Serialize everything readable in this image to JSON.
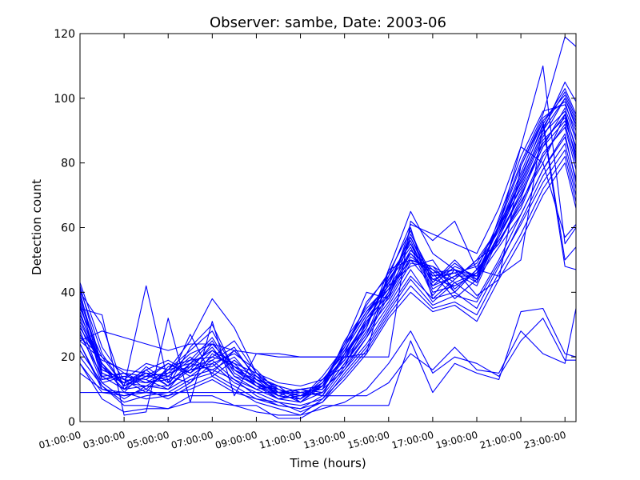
{
  "chart_data": {
    "type": "line",
    "title": "Observer: sambe, Date: 2003-06",
    "xlabel": "Time (hours)",
    "ylabel": "Detection count",
    "x_tick_labels": [
      "01:00:00",
      "03:00:00",
      "05:00:00",
      "07:00:00",
      "09:00:00",
      "11:00:00",
      "13:00:00",
      "15:00:00",
      "17:00:00",
      "19:00:00",
      "21:00:00",
      "23:00:00"
    ],
    "y_ticks": [
      0,
      20,
      40,
      60,
      80,
      100,
      120
    ],
    "xlim": [
      1,
      23.5
    ],
    "ylim": [
      0,
      120
    ],
    "grid": false,
    "line_color": "#0000ff",
    "x": [
      1,
      2,
      3,
      4,
      5,
      6,
      7,
      8,
      9,
      10,
      11,
      12,
      13,
      14,
      15,
      16,
      17,
      18,
      19,
      20,
      21,
      22,
      23,
      23.5
    ],
    "series": [
      {
        "values": [
          42,
          17,
          12,
          15,
          11,
          16,
          24,
          17,
          12,
          8,
          7,
          11,
          20,
          30,
          45,
          55,
          40,
          42,
          46,
          60,
          72,
          88,
          100,
          92
        ]
      },
      {
        "values": [
          38,
          16,
          13,
          12,
          14,
          20,
          15,
          22,
          14,
          9,
          8,
          12,
          22,
          33,
          44,
          52,
          45,
          47,
          44,
          58,
          75,
          92,
          103,
          95
        ]
      },
      {
        "values": [
          35,
          20,
          11,
          14,
          18,
          14,
          19,
          13,
          10,
          11,
          6,
          9,
          18,
          27,
          40,
          60,
          38,
          44,
          50,
          55,
          68,
          80,
          95,
          85
        ]
      },
      {
        "values": [
          40,
          14,
          10,
          17,
          12,
          18,
          22,
          18,
          11,
          7,
          9,
          10,
          25,
          35,
          42,
          48,
          50,
          40,
          47,
          62,
          80,
          95,
          119,
          116
        ]
      },
      {
        "values": [
          30,
          13,
          15,
          10,
          16,
          22,
          28,
          16,
          13,
          10,
          7,
          13,
          17,
          31,
          38,
          57,
          44,
          46,
          42,
          57,
          70,
          85,
          97,
          87
        ]
      },
      {
        "values": [
          33,
          18,
          9,
          16,
          19,
          15,
          20,
          25,
          15,
          8,
          10,
          8,
          21,
          29,
          47,
          50,
          42,
          48,
          45,
          61,
          74,
          90,
          105,
          99
        ]
      },
      {
        "values": [
          28,
          12,
          14,
          13,
          10,
          18,
          16,
          20,
          12,
          9,
          6,
          11,
          19,
          32,
          41,
          53,
          47,
          43,
          46,
          56,
          66,
          82,
          92,
          80
        ]
      },
      {
        "values": [
          36,
          15,
          12,
          11,
          15,
          17,
          23,
          14,
          10,
          7,
          8,
          12,
          24,
          34,
          43,
          56,
          41,
          45,
          49,
          60,
          77,
          93,
          101,
          93
        ]
      },
      {
        "values": [
          25,
          19,
          16,
          15,
          14,
          12,
          21,
          17,
          14,
          11,
          9,
          10,
          16,
          26,
          39,
          51,
          46,
          38,
          44,
          54,
          64,
          78,
          88,
          75
        ]
      },
      {
        "values": [
          41,
          21,
          11,
          42,
          12,
          27,
          14,
          19,
          13,
          8,
          7,
          14,
          23,
          36,
          46,
          59,
          43,
          50,
          43,
          63,
          82,
          96,
          98,
          90
        ]
      },
      {
        "values": [
          32,
          16,
          13,
          9,
          17,
          19,
          26,
          15,
          11,
          10,
          8,
          9,
          18,
          28,
          37,
          49,
          48,
          41,
          47,
          55,
          69,
          87,
          94,
          82
        ]
      },
      {
        "values": [
          27,
          14,
          15,
          12,
          13,
          16,
          18,
          21,
          16,
          9,
          10,
          11,
          20,
          30,
          44,
          54,
          39,
          47,
          45,
          58,
          73,
          89,
          96,
          84
        ]
      },
      {
        "values": [
          39,
          17,
          10,
          14,
          15,
          21,
          24,
          17,
          12,
          7,
          6,
          12,
          22,
          33,
          42,
          58,
          45,
          46,
          48,
          59,
          76,
          91,
          102,
          94
        ]
      },
      {
        "values": [
          34,
          15,
          12,
          16,
          11,
          17,
          19,
          23,
          13,
          11,
          9,
          10,
          21,
          31,
          40,
          52,
          44,
          42,
          46,
          57,
          71,
          86,
          95,
          81
        ]
      },
      {
        "values": [
          37,
          13,
          14,
          13,
          18,
          15,
          22,
          16,
          11,
          8,
          7,
          13,
          19,
          29,
          45,
          55,
          43,
          49,
          44,
          61,
          79,
          94,
          99,
          88
        ]
      },
      {
        "values": [
          29,
          18,
          11,
          15,
          14,
          19,
          20,
          18,
          15,
          10,
          8,
          11,
          23,
          34,
          41,
          50,
          47,
          40,
          47,
          56,
          67,
          83,
          91,
          78
        ]
      },
      {
        "values": [
          31,
          16,
          13,
          12,
          16,
          18,
          25,
          14,
          12,
          9,
          10,
          9,
          18,
          27,
          43,
          57,
          42,
          45,
          45,
          60,
          74,
          90,
          100,
          91
        ]
      },
      {
        "values": [
          26,
          20,
          15,
          14,
          13,
          16,
          17,
          22,
          14,
          8,
          7,
          12,
          20,
          32,
          39,
          53,
          46,
          47,
          43,
          58,
          70,
          85,
          93,
          83
        ]
      },
      {
        "values": [
          24,
          10,
          8,
          9,
          8,
          12,
          18,
          12,
          9,
          6,
          5,
          7,
          16,
          24,
          35,
          45,
          38,
          40,
          35,
          48,
          62,
          76,
          86,
          72
        ]
      },
      {
        "values": [
          22,
          12,
          7,
          11,
          10,
          14,
          16,
          13,
          8,
          5,
          4,
          8,
          17,
          26,
          36,
          47,
          37,
          43,
          38,
          50,
          64,
          78,
          89,
          74
        ]
      },
      {
        "values": [
          20,
          11,
          6,
          8,
          9,
          13,
          15,
          11,
          7,
          6,
          3,
          6,
          15,
          23,
          34,
          44,
          36,
          39,
          37,
          49,
          61,
          74,
          84,
          70
        ]
      },
      {
        "values": [
          18,
          9,
          8,
          10,
          7,
          11,
          14,
          10,
          6,
          4,
          2,
          7,
          14,
          22,
          33,
          42,
          35,
          37,
          33,
          46,
          58,
          72,
          82,
          68
        ]
      },
      {
        "values": [
          15,
          10,
          9,
          7,
          8,
          10,
          13,
          9,
          7,
          5,
          4,
          6,
          13,
          21,
          32,
          40,
          34,
          36,
          31,
          44,
          56,
          70,
          80,
          66
        ]
      },
      {
        "values": [
          43,
          23,
          13,
          18,
          16,
          25,
          38,
          29,
          15,
          12,
          11,
          13,
          21,
          37,
          45,
          61,
          58,
          55,
          52,
          66,
          85,
          110,
          55,
          60
        ]
      },
      {
        "values": [
          35,
          33,
          2,
          3,
          32,
          6,
          31,
          8,
          21,
          21,
          20,
          20,
          20,
          21,
          47,
          65,
          52,
          47,
          39,
          44,
          79,
          93,
          50,
          54
        ]
      },
      {
        "values": [
          25,
          28,
          26,
          24,
          22,
          24,
          24,
          22,
          21,
          20,
          20,
          20,
          20,
          20,
          20,
          62,
          56,
          62,
          47,
          45,
          50,
          92,
          48,
          47
        ]
      },
      {
        "values": [
          9,
          9,
          9,
          9,
          9,
          9,
          9,
          9,
          9,
          9,
          9,
          8,
          8,
          8,
          12,
          21,
          16,
          23,
          16,
          15,
          28,
          21,
          18,
          35
        ]
      },
      {
        "values": [
          24,
          11,
          5,
          5,
          4,
          8,
          8,
          5,
          5,
          1,
          1,
          5,
          5,
          5,
          5,
          25,
          9,
          18,
          15,
          13,
          34,
          35,
          21,
          20
        ]
      },
      {
        "values": [
          18,
          7,
          3,
          4,
          4,
          6,
          6,
          5,
          3,
          2,
          2,
          4,
          6,
          10,
          18,
          28,
          15,
          20,
          18,
          14,
          25,
          32,
          19,
          19
        ]
      },
      {
        "values": [
          40,
          30,
          10,
          11,
          11,
          23,
          30,
          16,
          12,
          9,
          10,
          11,
          24,
          40,
          38,
          50,
          48,
          44,
          50,
          60,
          85,
          80,
          57,
          61
        ]
      }
    ]
  }
}
